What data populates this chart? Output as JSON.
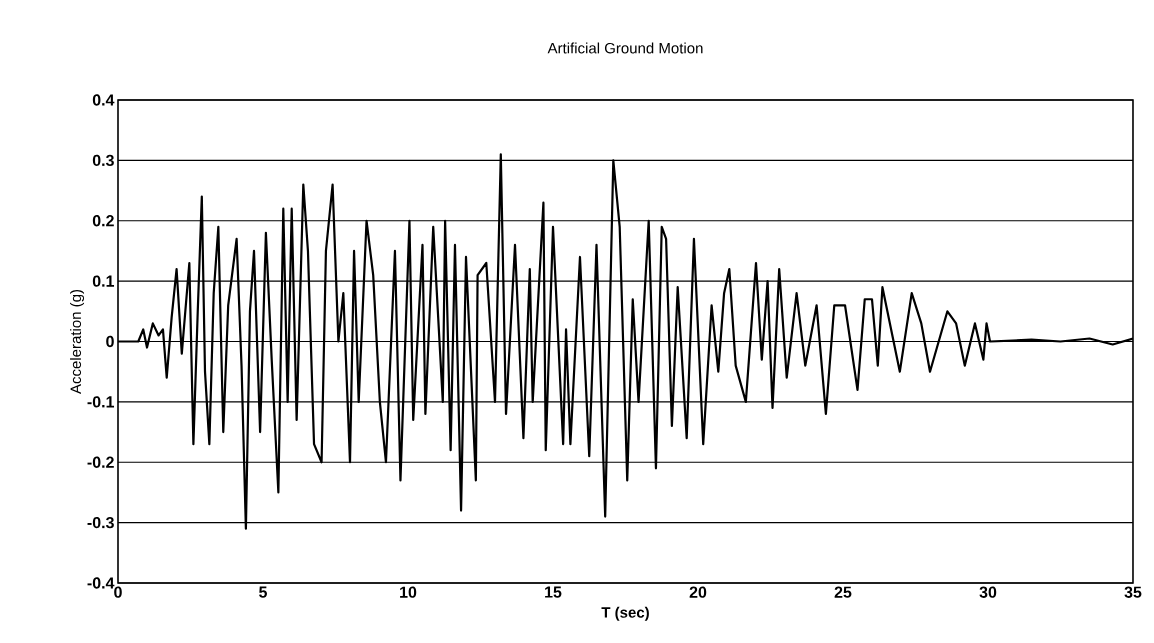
{
  "chart_data": {
    "type": "line",
    "title": "Artificial Ground Motion",
    "xlabel": "T (sec)",
    "ylabel": "Acceleration (g)",
    "x": [
      0,
      0.7,
      0.87,
      1.0,
      1.2,
      1.4,
      1.55,
      1.68,
      1.85,
      2.02,
      2.2,
      2.46,
      2.6,
      2.75,
      2.89,
      3.0,
      3.15,
      3.3,
      3.46,
      3.63,
      3.8,
      4.09,
      4.26,
      4.41,
      4.55,
      4.69,
      4.9,
      5.1,
      5.3,
      5.53,
      5.7,
      5.85,
      5.99,
      6.16,
      6.39,
      6.55,
      6.76,
      7.02,
      7.17,
      7.4,
      7.6,
      7.77,
      8.0,
      8.14,
      8.3,
      8.57,
      8.8,
      9.03,
      9.24,
      9.55,
      9.74,
      10.05,
      10.18,
      10.5,
      10.6,
      10.87,
      11.2,
      11.28,
      11.47,
      11.62,
      11.83,
      12.0,
      12.34,
      12.4,
      12.7,
      13.0,
      13.2,
      13.38,
      13.69,
      13.98,
      14.2,
      14.3,
      14.67,
      14.75,
      15.0,
      15.35,
      15.45,
      15.6,
      15.93,
      16.25,
      16.5,
      16.8,
      17.08,
      17.3,
      17.56,
      17.75,
      17.95,
      18.3,
      18.55,
      18.75,
      18.9,
      19.1,
      19.3,
      19.61,
      19.86,
      20.18,
      20.47,
      20.7,
      20.9,
      21.08,
      21.3,
      21.65,
      22.0,
      22.2,
      22.4,
      22.57,
      22.8,
      23.06,
      23.4,
      23.7,
      24.09,
      24.41,
      24.7,
      25.07,
      25.5,
      25.75,
      26.0,
      26.2,
      26.36,
      26.96,
      27.37,
      27.7,
      28.0,
      28.6,
      28.9,
      29.2,
      29.55,
      29.84,
      29.95,
      30.07,
      31.5,
      32.5,
      33.5,
      34.3,
      35
    ],
    "values": [
      0,
      0,
      0.02,
      -0.01,
      0.03,
      0.01,
      0.02,
      -0.06,
      0.04,
      0.12,
      -0.02,
      0.13,
      -0.17,
      0.05,
      0.24,
      -0.05,
      -0.17,
      0.08,
      0.19,
      -0.15,
      0.06,
      0.17,
      -0.04,
      -0.31,
      0.05,
      0.15,
      -0.15,
      0.18,
      -0.03,
      -0.25,
      0.22,
      -0.1,
      0.22,
      -0.13,
      0.26,
      0.15,
      -0.17,
      -0.2,
      0.15,
      0.26,
      0,
      0.08,
      -0.2,
      0.15,
      -0.1,
      0.2,
      0.11,
      -0.1,
      -0.2,
      0.15,
      -0.23,
      0.2,
      -0.13,
      0.16,
      -0.12,
      0.19,
      -0.1,
      0.2,
      -0.18,
      0.16,
      -0.28,
      0.14,
      -0.23,
      0.11,
      0.13,
      -0.1,
      0.31,
      -0.12,
      0.16,
      -0.16,
      0.12,
      -0.1,
      0.23,
      -0.18,
      0.19,
      -0.17,
      0.02,
      -0.17,
      0.14,
      -0.19,
      0.16,
      -0.29,
      0.3,
      0.19,
      -0.23,
      0.07,
      -0.1,
      0.2,
      -0.21,
      0.19,
      0.17,
      -0.14,
      0.09,
      -0.16,
      0.17,
      -0.17,
      0.06,
      -0.05,
      0.08,
      0.12,
      -0.04,
      -0.1,
      0.13,
      -0.03,
      0.1,
      -0.11,
      0.12,
      -0.06,
      0.08,
      -0.04,
      0.06,
      -0.12,
      0.06,
      0.06,
      -0.08,
      0.07,
      0.07,
      -0.04,
      0.09,
      -0.05,
      0.08,
      0.03,
      -0.05,
      0.05,
      0.03,
      -0.04,
      0.03,
      -0.03,
      0.03,
      0,
      0.003,
      0,
      0.005,
      -0.005,
      0.005
    ],
    "color": "#000000",
    "xlim": [
      0,
      35
    ],
    "ylim": [
      -0.4,
      0.4
    ],
    "xticks": [
      0,
      5,
      10,
      15,
      20,
      25,
      30,
      35
    ],
    "yticks": [
      -0.4,
      -0.3,
      -0.2,
      -0.1,
      0,
      0.1,
      0.2,
      0.3,
      0.4
    ],
    "grid": "y"
  }
}
